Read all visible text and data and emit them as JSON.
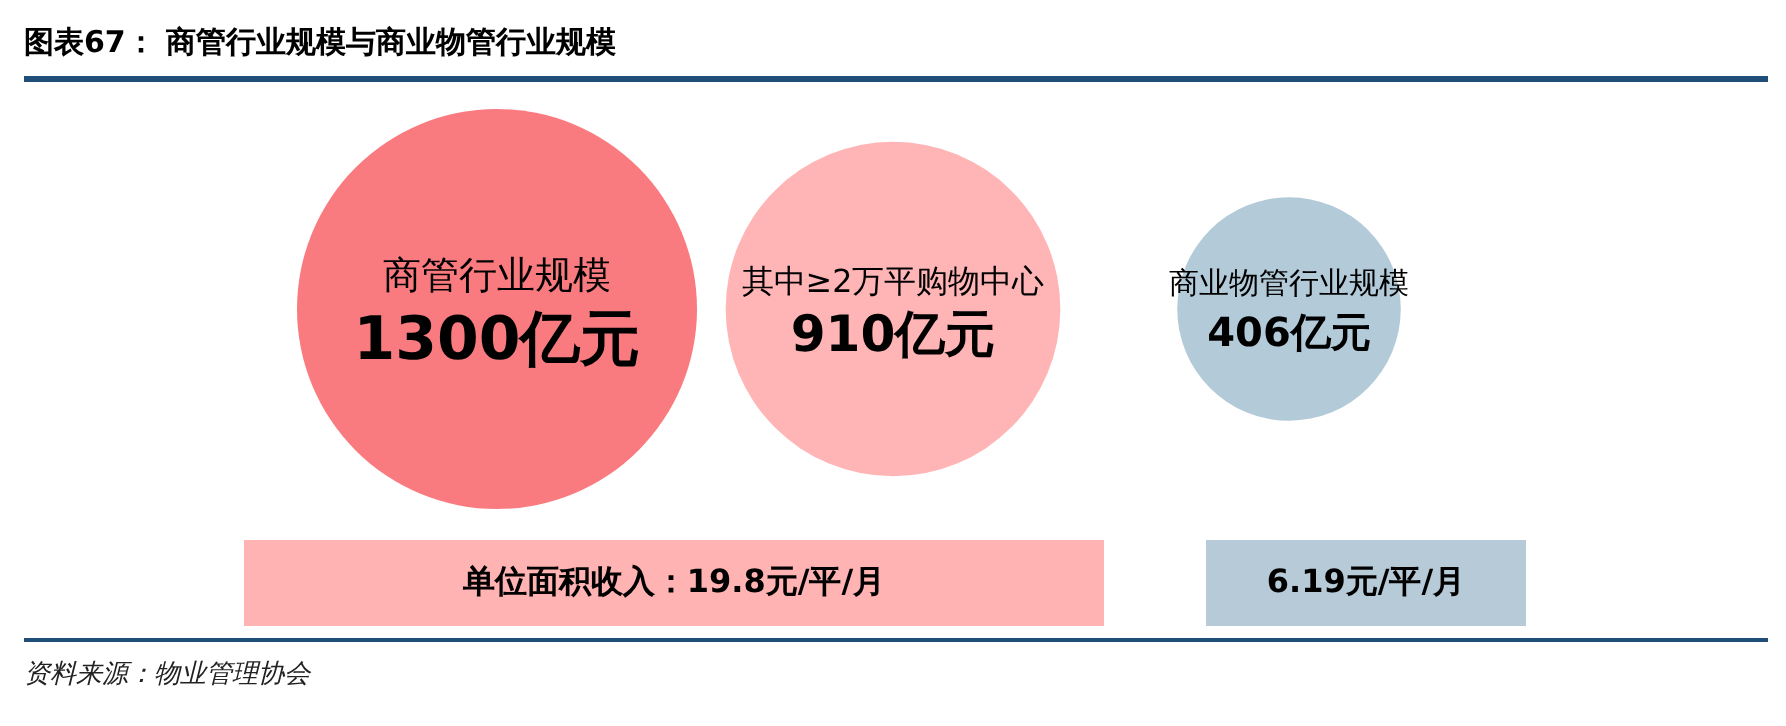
{
  "chart_data": {
    "type": "other",
    "title": "图表67：  商管行业规模与商业物管行业规模",
    "categories": [
      "商管行业规模",
      "其中≥2万平购物中心",
      "商业物管行业规模"
    ],
    "values": [
      1300,
      910,
      406
    ],
    "value_labels": [
      "1300亿元",
      "910亿元",
      "406亿元"
    ],
    "colors": [
      "#fa7b7f",
      "#ffb5b6",
      "#b3cad9"
    ],
    "annotations": [
      "单位面积收入：19.8元/平/月",
      "6.19元/平/月",
      "资料来源：物业管理协会"
    ]
  }
}
